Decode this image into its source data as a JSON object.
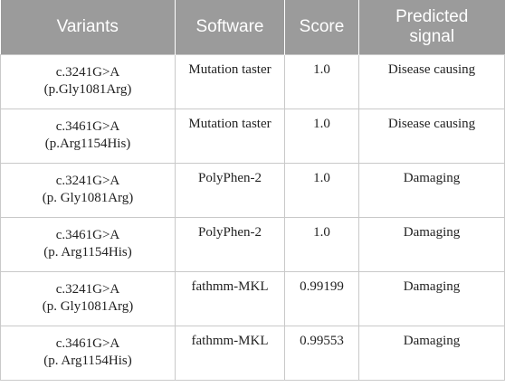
{
  "table": {
    "headers": {
      "variants": "Variants",
      "software": "Software",
      "score": "Score",
      "signal_line1": "Predicted",
      "signal_line2": "signal"
    },
    "rows": [
      {
        "variant_line1": "c.3241G>A",
        "variant_line2": "(p.Gly1081Arg)",
        "software": "Mutation taster",
        "score": "1.0",
        "signal": "Disease causing"
      },
      {
        "variant_line1": "c.3461G>A",
        "variant_line2": "(p.Arg1154His)",
        "software": "Mutation taster",
        "score": "1.0",
        "signal": "Disease causing"
      },
      {
        "variant_line1": "c.3241G>A",
        "variant_line2": "(p. Gly1081Arg)",
        "software": "PolyPhen-2",
        "score": "1.0",
        "signal": "Damaging"
      },
      {
        "variant_line1": "c.3461G>A",
        "variant_line2": "(p. Arg1154His)",
        "software": "PolyPhen-2",
        "score": "1.0",
        "signal": "Damaging"
      },
      {
        "variant_line1": "c.3241G>A",
        "variant_line2": "(p. Gly1081Arg)",
        "software": "fathmm-MKL",
        "score": "0.99199",
        "signal": "Damaging"
      },
      {
        "variant_line1": "c.3461G>A",
        "variant_line2": "(p. Arg1154His)",
        "software": "fathmm-MKL",
        "score": "0.99553",
        "signal": "Damaging"
      }
    ]
  },
  "colors": {
    "header_background": "#9b9b9b",
    "header_text": "#ffffff",
    "grid_line": "#c9c9c9"
  }
}
